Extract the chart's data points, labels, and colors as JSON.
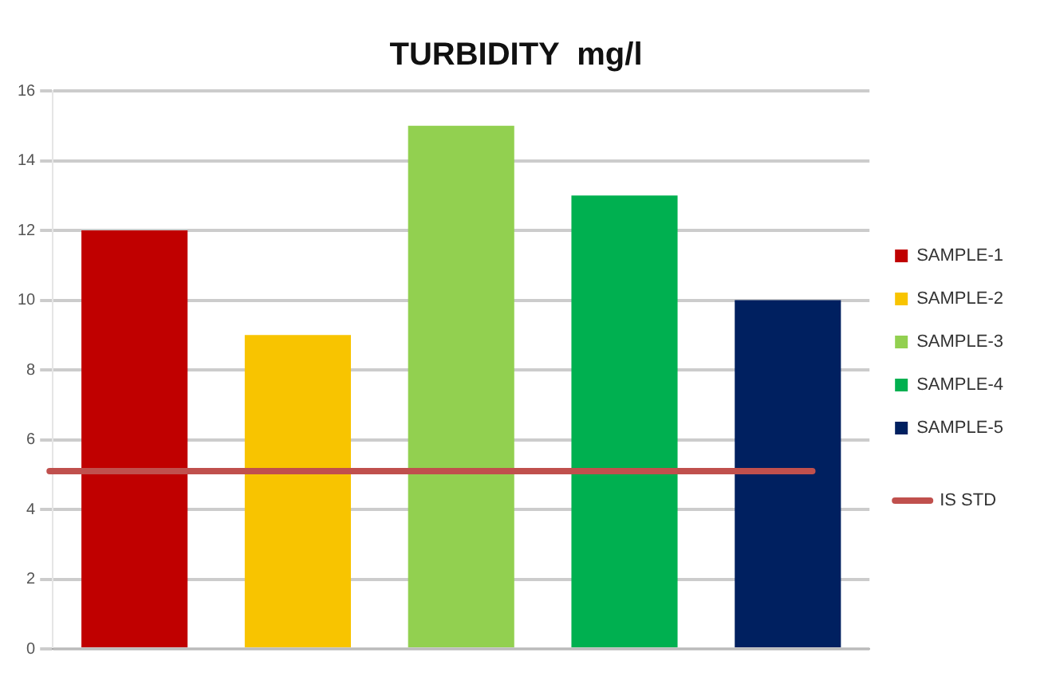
{
  "chart_data": {
    "type": "bar",
    "title": "TURBIDITY  mg/l",
    "categories": [
      null,
      null,
      null,
      null,
      null
    ],
    "series": [
      {
        "name": "SAMPLE-1",
        "color": "#c00000",
        "values": [
          12,
          null,
          null,
          null,
          null
        ]
      },
      {
        "name": "SAMPLE-2",
        "color": "#f8c400",
        "values": [
          null,
          9,
          null,
          null,
          null
        ]
      },
      {
        "name": "SAMPLE-3",
        "color": "#92d050",
        "values": [
          null,
          null,
          15,
          null,
          null
        ]
      },
      {
        "name": "SAMPLE-4",
        "color": "#00b050",
        "values": [
          null,
          null,
          null,
          13,
          null
        ]
      },
      {
        "name": "SAMPLE-5",
        "color": "#002060",
        "values": [
          null,
          null,
          null,
          null,
          10
        ]
      }
    ],
    "ylim": [
      0,
      16
    ],
    "yticks": [
      0,
      2,
      4,
      6,
      8,
      10,
      12,
      14,
      16
    ],
    "grid": "y",
    "legend": "right",
    "ref_lines": [
      {
        "axis": "y",
        "value": 5.1,
        "label": "IS STD",
        "color": "#c0504d"
      }
    ]
  }
}
